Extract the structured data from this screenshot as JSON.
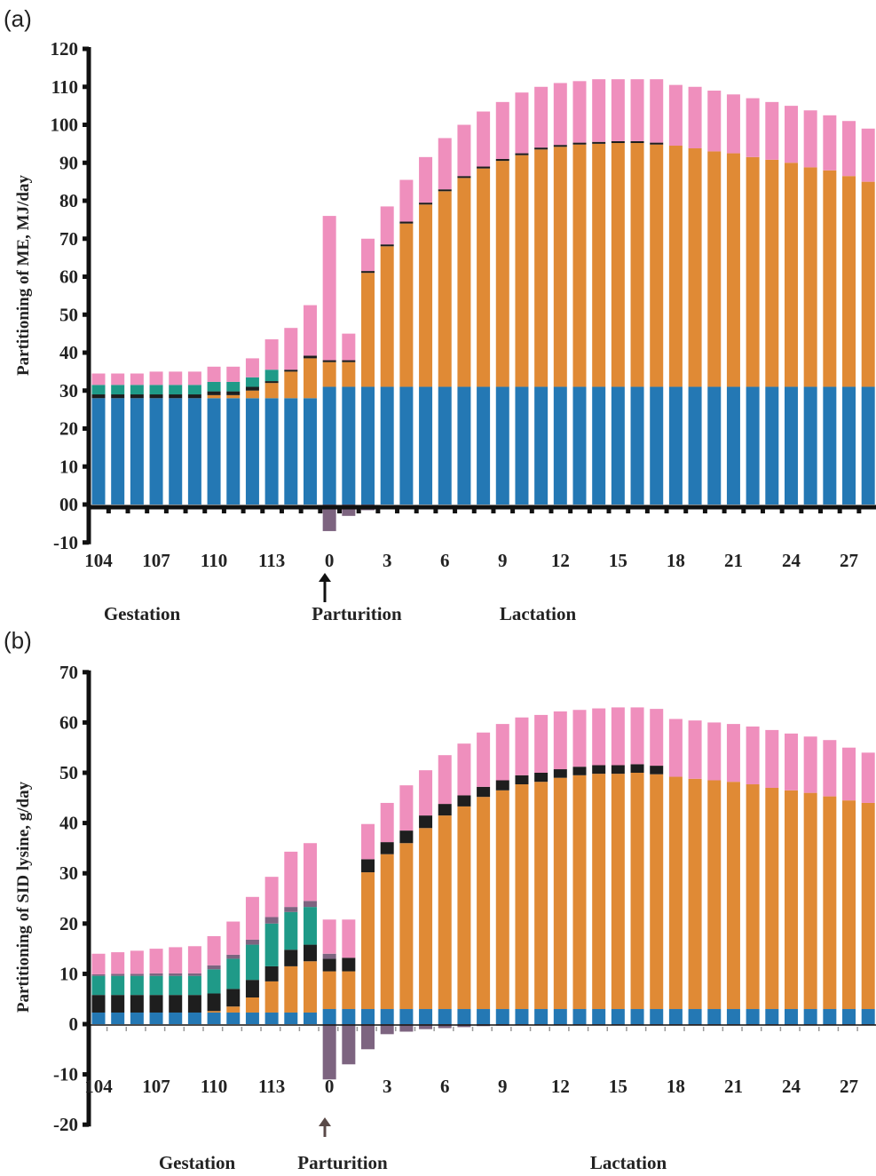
{
  "colors": {
    "maintenance": "#2478b4",
    "milk": "#e08a35",
    "separator": "#1e1e1e",
    "conceptus": "#1f9a88",
    "mobilization": "#7d6480",
    "other": "#ef8fbd",
    "axis": "#111111"
  },
  "chart_data": [
    {
      "type": "bar",
      "stacked": true,
      "panel_label": "(a)",
      "title": "",
      "xlabel": "",
      "ylabel": "Partitioning of ME, MJ/day",
      "ylim": [
        -10,
        120
      ],
      "yticks": [
        -10,
        0,
        10,
        20,
        30,
        40,
        50,
        60,
        70,
        80,
        90,
        100,
        110,
        120
      ],
      "ytick_labels": [
        "-10",
        "00",
        "10",
        "20",
        "30",
        "40",
        "50",
        "60",
        "70",
        "80",
        "90",
        "100",
        "110",
        "120"
      ],
      "categories": [
        "104",
        "105",
        "106",
        "107",
        "108",
        "109",
        "110",
        "111",
        "112",
        "113",
        "114",
        "115",
        "0",
        "1",
        "2",
        "3",
        "4",
        "5",
        "6",
        "7",
        "8",
        "9",
        "10",
        "11",
        "12",
        "13",
        "14",
        "15",
        "16",
        "17",
        "18",
        "19",
        "20",
        "21",
        "22",
        "23",
        "24",
        "25",
        "26",
        "27",
        "28"
      ],
      "xtick_labels": [
        "104",
        "107",
        "110",
        "113",
        "0",
        "3",
        "6",
        "9",
        "12",
        "15",
        "18",
        "21",
        "24",
        "27"
      ],
      "phase_labels": [
        {
          "text": "Gestation",
          "position": "under 104-109"
        },
        {
          "text": "Parturition",
          "position": "under 0",
          "arrow": true
        },
        {
          "text": "Lactation",
          "position": "under 9-12"
        }
      ],
      "legend": null,
      "series": [
        {
          "name": "blue",
          "color_key": "maintenance",
          "values": [
            28,
            28,
            28,
            28,
            28,
            28,
            28,
            28,
            28,
            28,
            28,
            28,
            31,
            31,
            31,
            31,
            31,
            31,
            31,
            31,
            31,
            31,
            31,
            31,
            31,
            31,
            31,
            31,
            31,
            31,
            31,
            31,
            31,
            31,
            31,
            31,
            31,
            31,
            31,
            31,
            31
          ]
        },
        {
          "name": "orange",
          "color_key": "milk",
          "values": [
            0,
            0,
            0,
            0,
            0,
            0,
            0.8,
            0.8,
            2,
            4,
            7,
            10.5,
            6.5,
            6.5,
            30,
            37,
            43,
            48,
            51.5,
            55,
            57.5,
            59.5,
            61,
            62.5,
            63.2,
            63.8,
            64,
            64.2,
            64.2,
            63.8,
            63.5,
            62.8,
            62,
            61.5,
            60.5,
            59.8,
            59,
            57.8,
            57,
            55.5,
            54
          ]
        },
        {
          "name": "black",
          "color_key": "separator",
          "values": [
            1,
            1,
            1,
            1,
            1,
            1,
            1,
            1,
            1,
            0.5,
            0.5,
            0.7,
            0.5,
            0.5,
            0.5,
            0.5,
            0.5,
            0.5,
            0.5,
            0.5,
            0.5,
            0.5,
            0.5,
            0.5,
            0.5,
            0.5,
            0.5,
            0.5,
            0.5,
            0.5,
            0,
            0,
            0,
            0,
            0,
            0,
            0,
            0,
            0,
            0,
            0
          ]
        },
        {
          "name": "teal",
          "color_key": "conceptus",
          "values": [
            2.5,
            2.5,
            2.5,
            2.5,
            2.5,
            2.5,
            2.5,
            2.5,
            2.5,
            3,
            0,
            0,
            0,
            0,
            0,
            0,
            0,
            0,
            0,
            0,
            0,
            0,
            0,
            0,
            0,
            0,
            0,
            0,
            0,
            0,
            0,
            0,
            0,
            0,
            0,
            0,
            0,
            0,
            0,
            0,
            0
          ]
        },
        {
          "name": "pink",
          "color_key": "other",
          "values": [
            3,
            3,
            3,
            3.5,
            3.5,
            3.5,
            4,
            4,
            5,
            8,
            11,
            13.3,
            38,
            7,
            8.5,
            10,
            11,
            12,
            13.5,
            13.5,
            14.5,
            15,
            16,
            16,
            16.3,
            16.2,
            16.5,
            16.3,
            16.3,
            16.7,
            16,
            16.2,
            16,
            15.5,
            15.5,
            15.2,
            15,
            15,
            14.5,
            14.5,
            14
          ]
        },
        {
          "name": "purple (negative)",
          "color_key": "mobilization",
          "values": [
            0,
            0,
            0,
            0,
            0,
            0,
            0,
            0,
            0,
            0,
            0,
            0,
            -7,
            -3,
            -1.5,
            0,
            0,
            0,
            0,
            0,
            0,
            0,
            0,
            0,
            0,
            0,
            0,
            0,
            0,
            0,
            0,
            0,
            0,
            0,
            0,
            0,
            0,
            0,
            0,
            0,
            0
          ]
        }
      ]
    },
    {
      "type": "bar",
      "stacked": true,
      "panel_label": "(b)",
      "title": "",
      "xlabel": "",
      "ylabel": "Partitioning of SID lysine, g/day",
      "ylim": [
        -20,
        70
      ],
      "yticks": [
        -20,
        -10,
        0,
        10,
        20,
        30,
        40,
        50,
        60,
        70
      ],
      "ytick_labels": [
        "-20",
        "-10",
        "0",
        "10",
        "20",
        "30",
        "40",
        "50",
        "60",
        "70"
      ],
      "categories": [
        "104",
        "105",
        "106",
        "107",
        "108",
        "109",
        "110",
        "111",
        "112",
        "113",
        "114",
        "115",
        "0",
        "1",
        "2",
        "3",
        "4",
        "5",
        "6",
        "7",
        "8",
        "9",
        "10",
        "11",
        "12",
        "13",
        "14",
        "15",
        "16",
        "17",
        "18",
        "19",
        "20",
        "21",
        "22",
        "23",
        "24",
        "25",
        "26",
        "27",
        "28"
      ],
      "xtick_labels": [
        "104",
        "107",
        "110",
        "113",
        "0",
        "3",
        "6",
        "9",
        "12",
        "15",
        "18",
        "21",
        "24",
        "27"
      ],
      "phase_labels": [
        {
          "text": "Gestation",
          "position": "under 107-110"
        },
        {
          "text": "Parturition",
          "position": "under 0",
          "arrow": true
        },
        {
          "text": "Lactation",
          "position": "under 15-18"
        }
      ],
      "legend": null,
      "series": [
        {
          "name": "blue",
          "color_key": "maintenance",
          "values": [
            2.3,
            2.3,
            2.3,
            2.3,
            2.3,
            2.3,
            2.3,
            2.3,
            2.3,
            2.3,
            2.3,
            2.3,
            3,
            3,
            3,
            3,
            3,
            3,
            3,
            3,
            3,
            3,
            3,
            3,
            3,
            3,
            3,
            3,
            3,
            3,
            3,
            3,
            3,
            3,
            3,
            3,
            3,
            3,
            3,
            3,
            3
          ]
        },
        {
          "name": "orange",
          "color_key": "milk",
          "values": [
            0,
            0,
            0,
            0,
            0,
            0,
            0.3,
            1.2,
            3,
            6.2,
            9.2,
            10.2,
            7.5,
            7.5,
            27.2,
            30.8,
            33,
            36,
            38.5,
            40.3,
            42.2,
            43.5,
            44.7,
            45.2,
            46,
            46.5,
            46.8,
            46.8,
            47,
            46.7,
            46.2,
            45.8,
            45.5,
            45.2,
            44.7,
            44,
            43.5,
            43,
            42.3,
            41.5,
            41
          ]
        },
        {
          "name": "black",
          "color_key": "separator",
          "values": [
            3.5,
            3.5,
            3.5,
            3.5,
            3.5,
            3.5,
            3.5,
            3.5,
            3.5,
            3,
            3.3,
            3.3,
            2.5,
            2.7,
            2.6,
            2.4,
            2.5,
            2.5,
            2.3,
            2.2,
            2,
            2,
            1.8,
            1.8,
            1.7,
            1.7,
            1.7,
            1.7,
            1.7,
            1.7,
            0,
            0,
            0,
            0,
            0,
            0,
            0,
            0,
            0,
            0,
            0
          ]
        },
        {
          "name": "teal",
          "color_key": "conceptus",
          "values": [
            3.8,
            3.8,
            3.8,
            3.8,
            3.8,
            3.8,
            4.8,
            6,
            7,
            8.5,
            7.5,
            7.5,
            0,
            0,
            0,
            0,
            0,
            0,
            0,
            0,
            0,
            0,
            0,
            0,
            0,
            0,
            0,
            0,
            0,
            0,
            0,
            0,
            0,
            0,
            0,
            0,
            0,
            0,
            0,
            0,
            0
          ]
        },
        {
          "name": "purple",
          "color_key": "mobilization",
          "values": [
            0.3,
            0.4,
            0.4,
            0.5,
            0.5,
            0.5,
            0.8,
            0.8,
            1,
            1.3,
            1,
            1.2,
            1,
            0,
            0,
            0,
            0,
            0,
            0,
            0,
            0,
            0,
            0,
            0,
            0,
            0,
            0,
            0,
            0,
            0,
            0,
            0,
            0,
            0,
            0,
            0,
            0,
            0,
            0,
            0,
            0
          ]
        },
        {
          "name": "pink",
          "color_key": "other",
          "values": [
            4.1,
            4.3,
            4.6,
            4.9,
            5.2,
            5.4,
            5.8,
            6.6,
            8.5,
            8,
            11,
            11.5,
            6.8,
            7.6,
            7,
            7.8,
            9,
            9,
            9.7,
            10.3,
            10.8,
            11.2,
            11.5,
            11.5,
            11.5,
            11.3,
            11.3,
            11.5,
            11.3,
            11.3,
            11.5,
            11.6,
            11.5,
            11.5,
            11.5,
            11.5,
            11.3,
            11.2,
            11.2,
            10.5,
            10
          ]
        },
        {
          "name": "purple (negative)",
          "color_key": "mobilization",
          "values": [
            0,
            0,
            0,
            0,
            0,
            0,
            0,
            0,
            0,
            0,
            0,
            0,
            -11,
            -8,
            -5,
            -2,
            -1.5,
            -1,
            -0.8,
            -0.6,
            -0.4,
            -0.3,
            -0.2,
            -0.2,
            -0.2,
            -0.2,
            -0.2,
            -0.2,
            -0.2,
            -0.2,
            -0.2,
            -0.2,
            -0.2,
            -0.2,
            -0.2,
            -0.2,
            -0.2,
            -0.2,
            -0.2,
            -0.2,
            -0.2
          ]
        }
      ]
    }
  ]
}
